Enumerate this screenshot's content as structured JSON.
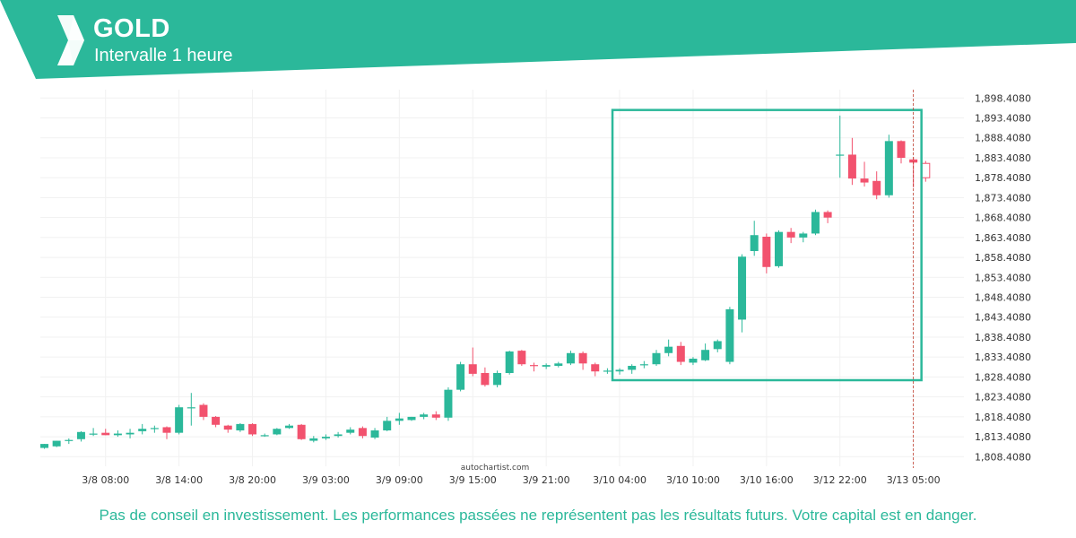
{
  "header": {
    "title": "GOLD",
    "subtitle": "Intervalle 1 heure"
  },
  "footer": {
    "disclaimer": "Pas de conseil en investissement. Les performances passées ne représentent pas les résultats futurs. Votre capital est en danger."
  },
  "watermark": "autochartist.com",
  "colors": {
    "brand": "#2bb89a",
    "bull": "#2bb89a",
    "bear": "#f2526e"
  },
  "chart_data": {
    "type": "candlestick",
    "title": "GOLD",
    "interval": "1 heure",
    "y_ticks": [
      "1,808.4080",
      "1,813.4080",
      "1,818.4080",
      "1,823.4080",
      "1,828.4080",
      "1,833.4080",
      "1,838.4080",
      "1,843.4080",
      "1,848.4080",
      "1,853.4080",
      "1,858.4080",
      "1,863.4080",
      "1,868.4080",
      "1,873.4080",
      "1,878.4080",
      "1,883.4080",
      "1,888.4080",
      "1,893.4080",
      "1,898.4080"
    ],
    "ylim": [
      1806.0,
      1900.5
    ],
    "x_ticks": [
      "3/8 08:00",
      "3/8 14:00",
      "3/8 20:00",
      "3/9 03:00",
      "3/9 09:00",
      "3/9 15:00",
      "3/9 21:00",
      "3/10 04:00",
      "3/10 10:00",
      "3/10 16:00",
      "3/12 22:00",
      "3/13 05:00"
    ],
    "x_tick_index": [
      5,
      11,
      17,
      23,
      29,
      35,
      41,
      47,
      53,
      59,
      65,
      71
    ],
    "highlighted_x_tick": "3/13 05:00",
    "candles": [
      {
        "o": 1810.6,
        "h": 1811.6,
        "l": 1810.4,
        "c": 1811.6
      },
      {
        "o": 1811.0,
        "h": 1812.4,
        "l": 1810.8,
        "c": 1812.4
      },
      {
        "o": 1812.4,
        "h": 1813.0,
        "l": 1811.6,
        "c": 1812.6
      },
      {
        "o": 1812.8,
        "h": 1814.8,
        "l": 1812.2,
        "c": 1814.6
      },
      {
        "o": 1814.2,
        "h": 1815.6,
        "l": 1813.6,
        "c": 1814.2
      },
      {
        "o": 1814.4,
        "h": 1815.4,
        "l": 1813.8,
        "c": 1813.8
      },
      {
        "o": 1813.8,
        "h": 1815.0,
        "l": 1813.4,
        "c": 1814.2
      },
      {
        "o": 1814.0,
        "h": 1815.4,
        "l": 1813.0,
        "c": 1814.4
      },
      {
        "o": 1814.8,
        "h": 1816.6,
        "l": 1814.0,
        "c": 1815.4
      },
      {
        "o": 1815.4,
        "h": 1816.2,
        "l": 1814.4,
        "c": 1815.6
      },
      {
        "o": 1815.8,
        "h": 1816.0,
        "l": 1812.8,
        "c": 1814.4
      },
      {
        "o": 1814.4,
        "h": 1821.4,
        "l": 1814.0,
        "c": 1820.8
      },
      {
        "o": 1820.8,
        "h": 1824.4,
        "l": 1816.2,
        "c": 1820.8
      },
      {
        "o": 1821.4,
        "h": 1821.8,
        "l": 1817.6,
        "c": 1818.4
      },
      {
        "o": 1818.4,
        "h": 1818.6,
        "l": 1815.8,
        "c": 1816.4
      },
      {
        "o": 1816.2,
        "h": 1816.4,
        "l": 1814.4,
        "c": 1815.2
      },
      {
        "o": 1815.0,
        "h": 1816.8,
        "l": 1814.6,
        "c": 1816.6
      },
      {
        "o": 1816.6,
        "h": 1816.8,
        "l": 1813.6,
        "c": 1814.0
      },
      {
        "o": 1813.8,
        "h": 1814.2,
        "l": 1813.4,
        "c": 1813.8
      },
      {
        "o": 1814.0,
        "h": 1815.6,
        "l": 1813.8,
        "c": 1815.4
      },
      {
        "o": 1815.6,
        "h": 1816.6,
        "l": 1815.4,
        "c": 1816.2
      },
      {
        "o": 1816.4,
        "h": 1816.6,
        "l": 1812.6,
        "c": 1812.8
      },
      {
        "o": 1812.4,
        "h": 1813.6,
        "l": 1812.0,
        "c": 1813.0
      },
      {
        "o": 1813.0,
        "h": 1814.0,
        "l": 1812.6,
        "c": 1813.4
      },
      {
        "o": 1813.6,
        "h": 1814.6,
        "l": 1813.2,
        "c": 1814.0
      },
      {
        "o": 1814.4,
        "h": 1815.8,
        "l": 1814.0,
        "c": 1815.2
      },
      {
        "o": 1815.6,
        "h": 1816.0,
        "l": 1813.0,
        "c": 1813.6
      },
      {
        "o": 1813.2,
        "h": 1815.6,
        "l": 1812.8,
        "c": 1815.0
      },
      {
        "o": 1815.0,
        "h": 1818.4,
        "l": 1814.8,
        "c": 1817.4
      },
      {
        "o": 1817.4,
        "h": 1819.4,
        "l": 1816.4,
        "c": 1818.0
      },
      {
        "o": 1817.6,
        "h": 1818.4,
        "l": 1817.4,
        "c": 1818.4
      },
      {
        "o": 1818.4,
        "h": 1819.4,
        "l": 1817.8,
        "c": 1819.0
      },
      {
        "o": 1819.0,
        "h": 1819.8,
        "l": 1817.6,
        "c": 1818.2
      },
      {
        "o": 1818.2,
        "h": 1825.8,
        "l": 1817.4,
        "c": 1825.2
      },
      {
        "o": 1825.2,
        "h": 1832.2,
        "l": 1824.8,
        "c": 1831.6
      },
      {
        "o": 1831.6,
        "h": 1835.8,
        "l": 1828.6,
        "c": 1829.2
      },
      {
        "o": 1829.4,
        "h": 1830.8,
        "l": 1826.0,
        "c": 1826.4
      },
      {
        "o": 1826.4,
        "h": 1830.0,
        "l": 1825.8,
        "c": 1829.4
      },
      {
        "o": 1829.4,
        "h": 1835.0,
        "l": 1829.0,
        "c": 1834.8
      },
      {
        "o": 1835.0,
        "h": 1835.2,
        "l": 1831.2,
        "c": 1831.6
      },
      {
        "o": 1831.4,
        "h": 1832.0,
        "l": 1829.8,
        "c": 1831.2
      },
      {
        "o": 1831.0,
        "h": 1831.8,
        "l": 1830.4,
        "c": 1831.4
      },
      {
        "o": 1831.2,
        "h": 1832.2,
        "l": 1830.8,
        "c": 1831.8
      },
      {
        "o": 1831.8,
        "h": 1835.0,
        "l": 1831.4,
        "c": 1834.4
      },
      {
        "o": 1834.4,
        "h": 1834.8,
        "l": 1830.2,
        "c": 1831.8
      },
      {
        "o": 1831.6,
        "h": 1832.0,
        "l": 1828.6,
        "c": 1829.8
      },
      {
        "o": 1829.8,
        "h": 1830.6,
        "l": 1829.2,
        "c": 1830.0
      },
      {
        "o": 1829.8,
        "h": 1830.6,
        "l": 1829.0,
        "c": 1830.2
      },
      {
        "o": 1830.2,
        "h": 1831.6,
        "l": 1829.2,
        "c": 1831.2
      },
      {
        "o": 1831.4,
        "h": 1832.4,
        "l": 1830.6,
        "c": 1831.6
      },
      {
        "o": 1831.6,
        "h": 1835.2,
        "l": 1831.2,
        "c": 1834.4
      },
      {
        "o": 1834.4,
        "h": 1837.8,
        "l": 1833.6,
        "c": 1836.0
      },
      {
        "o": 1836.2,
        "h": 1837.2,
        "l": 1831.4,
        "c": 1832.2
      },
      {
        "o": 1832.0,
        "h": 1833.4,
        "l": 1831.4,
        "c": 1833.0
      },
      {
        "o": 1832.6,
        "h": 1836.8,
        "l": 1832.4,
        "c": 1835.2
      },
      {
        "o": 1835.4,
        "h": 1837.8,
        "l": 1834.6,
        "c": 1837.4
      },
      {
        "o": 1832.2,
        "h": 1846.0,
        "l": 1831.6,
        "c": 1845.4
      },
      {
        "o": 1842.8,
        "h": 1859.2,
        "l": 1839.6,
        "c": 1858.6
      },
      {
        "o": 1860.0,
        "h": 1867.6,
        "l": 1858.8,
        "c": 1864.0
      },
      {
        "o": 1863.6,
        "h": 1864.4,
        "l": 1854.4,
        "c": 1856.0
      },
      {
        "o": 1856.2,
        "h": 1865.2,
        "l": 1855.8,
        "c": 1864.8
      },
      {
        "o": 1864.8,
        "h": 1865.8,
        "l": 1862.0,
        "c": 1863.4
      },
      {
        "o": 1863.4,
        "h": 1864.8,
        "l": 1862.2,
        "c": 1864.4
      },
      {
        "o": 1864.4,
        "h": 1870.4,
        "l": 1864.0,
        "c": 1869.8
      },
      {
        "o": 1869.8,
        "h": 1870.2,
        "l": 1867.0,
        "c": 1868.4
      },
      {
        "o": 1884.2,
        "h": 1894.0,
        "l": 1878.4,
        "c": 1884.2
      },
      {
        "o": 1884.2,
        "h": 1888.4,
        "l": 1876.6,
        "c": 1878.2
      },
      {
        "o": 1878.2,
        "h": 1882.4,
        "l": 1876.2,
        "c": 1877.2
      },
      {
        "o": 1877.6,
        "h": 1880.0,
        "l": 1873.0,
        "c": 1874.0
      },
      {
        "o": 1874.0,
        "h": 1889.2,
        "l": 1873.4,
        "c": 1887.6
      },
      {
        "o": 1887.6,
        "h": 1887.8,
        "l": 1882.0,
        "c": 1883.4
      },
      {
        "o": 1883.0,
        "h": 1883.6,
        "l": 1876.0,
        "c": 1882.2
      },
      {
        "o": 1882.0,
        "h": 1882.6,
        "l": 1877.4,
        "c": 1878.4
      }
    ],
    "last_candle_style": "hollow",
    "highlight_box": {
      "from_index": 47,
      "to_index": 71,
      "y_low": 1827.6,
      "y_high": 1895.4
    },
    "vertical_marker_index": 71,
    "grid": true
  }
}
